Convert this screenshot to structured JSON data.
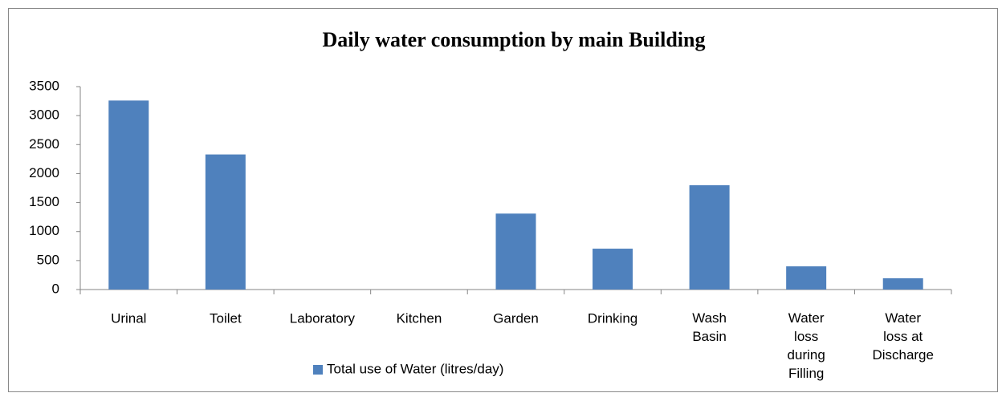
{
  "chart_data": {
    "type": "bar",
    "title": "Daily water consumption by main Building",
    "categories": [
      "Urinal",
      "Toilet",
      "Laboratory",
      "Kitchen",
      "Garden",
      "Drinking",
      "Wash Basin",
      "Water loss during Filling",
      "Water loss at Discharge"
    ],
    "series": [
      {
        "name": "Total use of Water (litres/day)",
        "color": "#4f81bd",
        "values": [
          3260,
          2330,
          0,
          0,
          1310,
          705,
          1800,
          400,
          195
        ]
      }
    ],
    "ylim": [
      0,
      3500
    ],
    "yticks": [
      0,
      500,
      1000,
      1500,
      2000,
      2500,
      3000,
      3500
    ],
    "grid": false,
    "legend": "bottom"
  }
}
